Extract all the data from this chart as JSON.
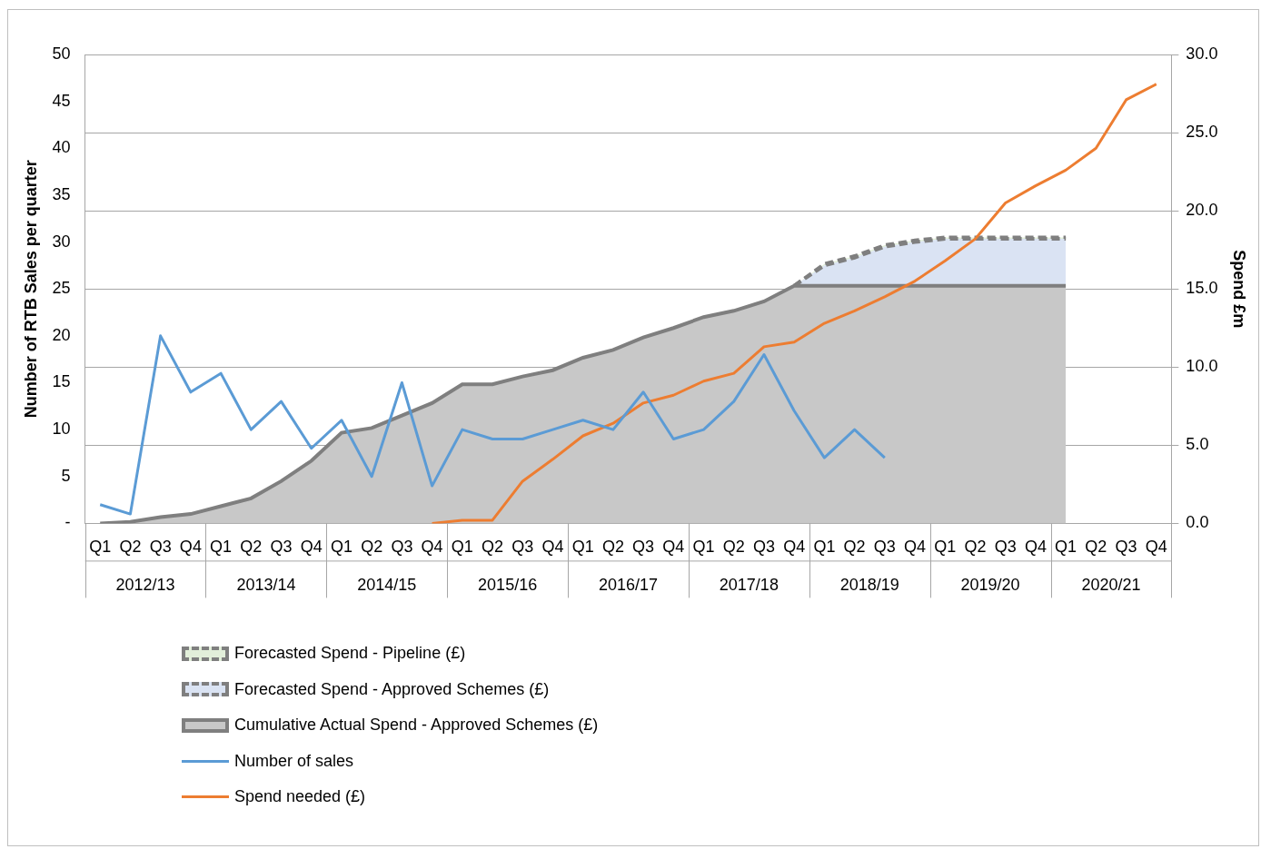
{
  "chart_data": {
    "type": "area",
    "categories": [
      "Q1",
      "Q2",
      "Q3",
      "Q4",
      "Q1",
      "Q2",
      "Q3",
      "Q4",
      "Q1",
      "Q2",
      "Q3",
      "Q4",
      "Q1",
      "Q2",
      "Q3",
      "Q4",
      "Q1",
      "Q2",
      "Q3",
      "Q4",
      "Q1",
      "Q2",
      "Q3",
      "Q4",
      "Q1",
      "Q2",
      "Q3",
      "Q4",
      "Q1",
      "Q2",
      "Q3",
      "Q4",
      "Q1",
      "Q2",
      "Q3",
      "Q4"
    ],
    "annotations": [
      "2012/13",
      "2013/14",
      "2014/15",
      "2015/16",
      "2016/17",
      "2017/18",
      "2018/19",
      "2019/20",
      "2020/21"
    ],
    "ylabel": "Number of RTB Sales per quarter",
    "y2label": "Spend £m",
    "ylim": [
      0,
      50
    ],
    "yticks": [
      {
        "value": 0,
        "label": "-"
      },
      5,
      10,
      15,
      20,
      25,
      30,
      35,
      40,
      45,
      50
    ],
    "y2lim": [
      0,
      30
    ],
    "y2ticks": [
      {
        "value": 0,
        "label": "0.0"
      },
      {
        "value": 5,
        "label": "5.0"
      },
      {
        "value": 10,
        "label": "10.0"
      },
      {
        "value": 15,
        "label": "15.0"
      },
      {
        "value": 20,
        "label": "20.0"
      },
      {
        "value": 25,
        "label": "25.0"
      },
      {
        "value": 30,
        "label": "30.0"
      }
    ],
    "stacked": true,
    "grid": "y2",
    "legend": "bottom left",
    "series": [
      {
        "name": "Forecasted Spend - Pipeline (£)",
        "axis": "y2",
        "color": "#e2efda",
        "line_style": "dashed",
        "values": [
          null,
          null,
          null,
          null,
          null,
          null,
          null,
          null,
          null,
          null,
          null,
          null,
          null,
          null,
          null,
          null,
          null,
          null,
          null,
          null,
          null,
          null,
          null,
          0,
          0.1,
          0.1,
          0.1,
          0.1,
          0.1,
          0.1,
          0.1,
          0.1,
          0.1,
          null,
          null,
          null
        ]
      },
      {
        "name": "Forecasted Spend - Approved Schemes (£)",
        "axis": "y2",
        "color": "#dae3f3",
        "line_style": "dashed",
        "values": [
          null,
          null,
          null,
          null,
          null,
          null,
          null,
          null,
          null,
          null,
          null,
          null,
          null,
          null,
          null,
          null,
          null,
          null,
          null,
          null,
          null,
          null,
          null,
          0,
          1.3,
          1.8,
          2.5,
          2.8,
          3.0,
          3.0,
          3.0,
          3.0,
          3.0,
          null,
          null,
          null
        ]
      },
      {
        "name": "Cumulative Actual Spend - Approved Schemes (£)",
        "axis": "y2",
        "color": "#c8c8c8",
        "line_style": "solid",
        "values": [
          0,
          0.1,
          0.4,
          0.6,
          1.1,
          1.6,
          2.7,
          4.0,
          5.8,
          6.1,
          6.9,
          7.7,
          8.9,
          8.9,
          9.4,
          9.8,
          10.6,
          11.1,
          11.9,
          12.5,
          13.2,
          13.6,
          14.2,
          15.2,
          15.2,
          15.2,
          15.2,
          15.2,
          15.2,
          15.2,
          15.2,
          15.2,
          15.2,
          null,
          null,
          null
        ]
      },
      {
        "name": "Number of sales",
        "type": "line",
        "axis": "y",
        "color": "#5b9bd5",
        "values": [
          2,
          1,
          20,
          14,
          16,
          10,
          13,
          8,
          11,
          5,
          15,
          4,
          10,
          9,
          9,
          10,
          11,
          10,
          14,
          9,
          10,
          13,
          18,
          12,
          7,
          10,
          7,
          null,
          null,
          null,
          null,
          null,
          null,
          null,
          null,
          null
        ]
      },
      {
        "name": "Spend needed (£)",
        "type": "line",
        "axis": "y2",
        "color": "#ed7d31",
        "values": [
          null,
          null,
          null,
          null,
          null,
          null,
          null,
          null,
          null,
          null,
          null,
          0,
          0.2,
          0.2,
          2.7,
          4.1,
          5.6,
          6.4,
          7.7,
          8.2,
          9.1,
          9.6,
          11.3,
          11.6,
          12.8,
          13.6,
          14.5,
          15.5,
          16.8,
          18.2,
          20.5,
          21.6,
          22.6,
          24.0,
          27.1,
          28.1
        ]
      }
    ]
  }
}
